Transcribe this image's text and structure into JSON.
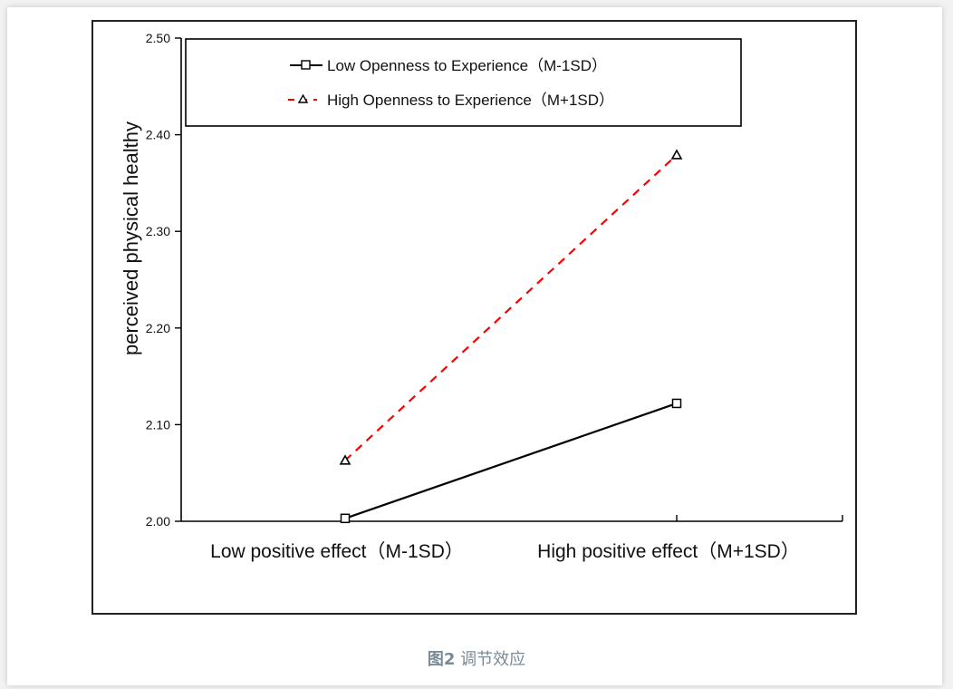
{
  "caption": {
    "label": "图2",
    "text": "调节效应"
  },
  "chart_data": {
    "type": "line",
    "title": "",
    "xlabel": "",
    "ylabel": "perceived physical healthy",
    "categories": [
      "Low positive effect（M-1SD）",
      "High positive effect（M+1SD）"
    ],
    "ylim": [
      2.0,
      2.5
    ],
    "yticks": [
      "2.00",
      "2.10",
      "2.20",
      "2.30",
      "2.40",
      "2.50"
    ],
    "ytick_values": [
      2.0,
      2.1,
      2.2,
      2.3,
      2.4,
      2.5
    ],
    "grid": false,
    "legend_position": "top",
    "series": [
      {
        "name": "Low Openness to Experience（M-1SD）",
        "values": [
          2.003,
          2.122
        ],
        "color": "#000000",
        "dash": "solid",
        "marker": "square"
      },
      {
        "name": "High Openness to Experience（M+1SD）",
        "values": [
          2.063,
          2.379
        ],
        "color": "#ff0000",
        "dash": "dashed",
        "marker": "triangle"
      }
    ]
  }
}
